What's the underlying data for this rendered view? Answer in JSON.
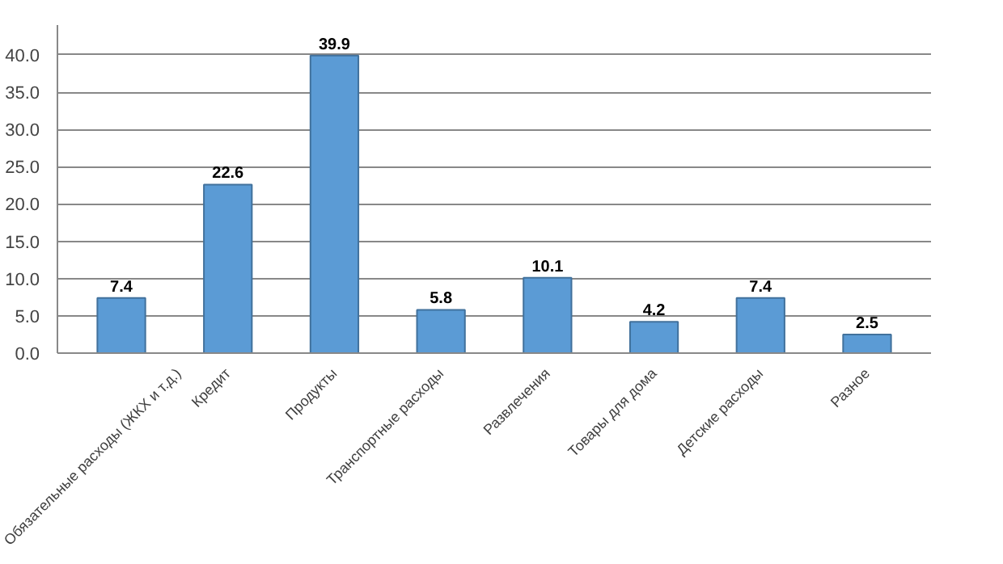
{
  "chart_data": {
    "type": "bar",
    "categories": [
      "Обязательные расходы (ЖКХ и т.д.)",
      "Кредит",
      "Продукты",
      "Транспортные расходы",
      "Развлечения",
      "Товары для дома",
      "Детские расходы",
      "Разное"
    ],
    "values": [
      7.4,
      22.6,
      39.9,
      5.8,
      10.1,
      4.2,
      7.4,
      2.5
    ],
    "color": "#5b9bd5",
    "ylim": [
      0,
      40
    ],
    "yticks": [
      {
        "value": 0,
        "label": "0.0"
      },
      {
        "value": 5,
        "label": "5.0"
      },
      {
        "value": 10,
        "label": "10.0"
      },
      {
        "value": 15,
        "label": "15.0"
      },
      {
        "value": 20,
        "label": "20.0"
      },
      {
        "value": 25,
        "label": "25.0"
      },
      {
        "value": 30,
        "label": "30.0"
      },
      {
        "value": 35,
        "label": "35.0"
      },
      {
        "value": 40,
        "label": "40.0"
      }
    ],
    "grid": "y",
    "data_labels": true
  }
}
